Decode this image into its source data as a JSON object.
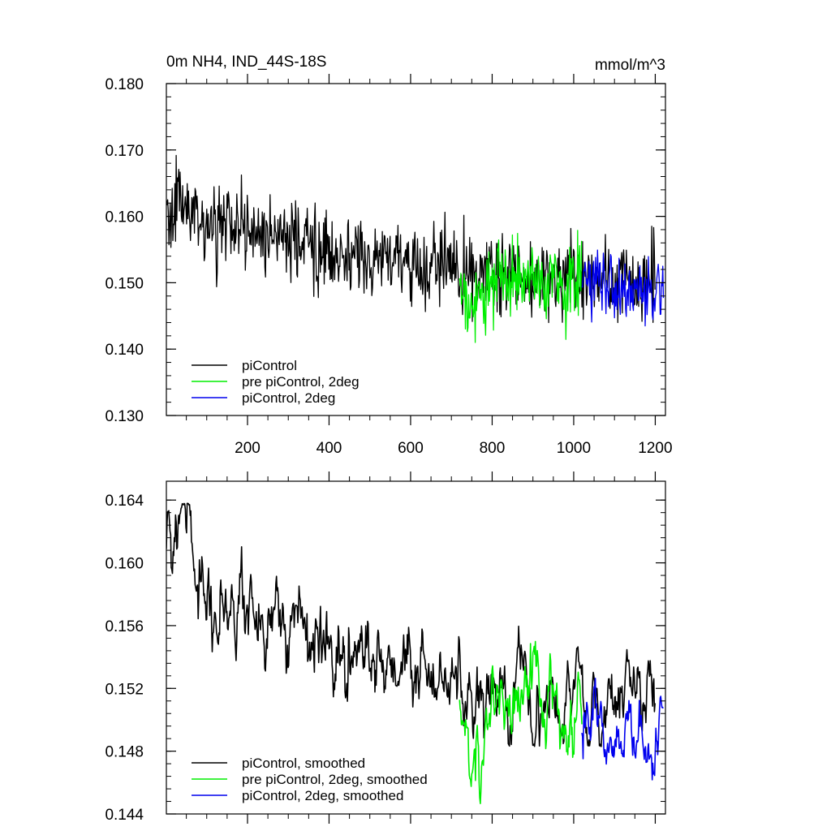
{
  "chart_data": [
    {
      "type": "line",
      "title": "0m NH4, IND_44S-18S",
      "units": "mmol/m^3",
      "xlim": [
        1,
        1225
      ],
      "ylim": [
        0.13,
        0.18
      ],
      "x_ticks": [
        200,
        400,
        600,
        800,
        1000,
        1200
      ],
      "y_ticks": [
        0.13,
        0.14,
        0.15,
        0.16,
        0.17,
        0.18
      ],
      "y_tick_labels": [
        "0.130",
        "0.140",
        "0.150",
        "0.160",
        "0.170",
        "0.180"
      ],
      "x_tick_labels": [
        "200",
        "400",
        "600",
        "800",
        "1000",
        "1200"
      ],
      "legend": "lower-left",
      "series": [
        {
          "name": "piControl",
          "color": "#000000",
          "x_start": 1,
          "x_end": 1200,
          "anchors": [
            [
              1,
              0.161
            ],
            [
              50,
              0.161
            ],
            [
              150,
              0.158
            ],
            [
              300,
              0.156
            ],
            [
              450,
              0.154
            ],
            [
              600,
              0.153
            ],
            [
              700,
              0.152
            ],
            [
              800,
              0.151
            ],
            [
              1000,
              0.151
            ],
            [
              1100,
              0.15
            ],
            [
              1200,
              0.151
            ]
          ],
          "noise": 0.0052,
          "min": 0.144,
          "max": 0.17
        },
        {
          "name": "pre piControl, 2deg",
          "color": "#00ee00",
          "x_start": 720,
          "x_end": 1020,
          "anchors": [
            [
              720,
              0.151
            ],
            [
              745,
              0.145
            ],
            [
              800,
              0.151
            ],
            [
              850,
              0.15
            ],
            [
              900,
              0.151
            ],
            [
              1020,
              0.15
            ]
          ],
          "noise": 0.005,
          "min": 0.1395,
          "max": 0.163
        },
        {
          "name": "piControl, 2deg",
          "color": "#0000ee",
          "x_start": 1020,
          "x_end": 1220,
          "anchors": [
            [
              1020,
              0.151
            ],
            [
              1100,
              0.149
            ],
            [
              1220,
              0.149
            ]
          ],
          "noise": 0.004,
          "min": 0.1415,
          "max": 0.161
        }
      ]
    },
    {
      "type": "line",
      "xlim": [
        1,
        1225
      ],
      "ylim": [
        0.144,
        0.1652
      ],
      "x_ticks": [
        200,
        400,
        600,
        800,
        1000,
        1200
      ],
      "y_ticks": [
        0.144,
        0.148,
        0.152,
        0.156,
        0.16,
        0.164
      ],
      "y_tick_labels": [
        "0.144",
        "0.148",
        "0.152",
        "0.156",
        "0.160",
        "0.164"
      ],
      "legend": "lower-left",
      "series": [
        {
          "name": "piControl, smoothed",
          "color": "#000000",
          "x_start": 1,
          "x_end": 1200,
          "anchors": [
            [
              1,
              0.161
            ],
            [
              30,
              0.1625
            ],
            [
              60,
              0.161
            ],
            [
              100,
              0.158
            ],
            [
              150,
              0.158
            ],
            [
              200,
              0.157
            ],
            [
              300,
              0.156
            ],
            [
              400,
              0.154
            ],
            [
              500,
              0.1535
            ],
            [
              600,
              0.153
            ],
            [
              700,
              0.152
            ],
            [
              800,
              0.1525
            ],
            [
              900,
              0.152
            ],
            [
              1000,
              0.1515
            ],
            [
              1100,
              0.151
            ],
            [
              1200,
              0.1515
            ]
          ],
          "noise": 0.0022,
          "min": 0.1483,
          "max": 0.1638
        },
        {
          "name": "pre piControl, 2deg, smoothed",
          "color": "#00ee00",
          "x_start": 720,
          "x_end": 1020,
          "anchors": [
            [
              720,
              0.151
            ],
            [
              745,
              0.146
            ],
            [
              800,
              0.152
            ],
            [
              850,
              0.15
            ],
            [
              900,
              0.152
            ],
            [
              950,
              0.15
            ],
            [
              1020,
              0.149
            ]
          ],
          "noise": 0.0022,
          "min": 0.1442,
          "max": 0.155
        },
        {
          "name": "piControl, 2deg, smoothed",
          "color": "#0000ee",
          "x_start": 1020,
          "x_end": 1220,
          "anchors": [
            [
              1020,
              0.1495
            ],
            [
              1100,
              0.149
            ],
            [
              1220,
              0.15
            ]
          ],
          "noise": 0.0018,
          "min": 0.1447,
          "max": 0.1558
        }
      ]
    }
  ]
}
